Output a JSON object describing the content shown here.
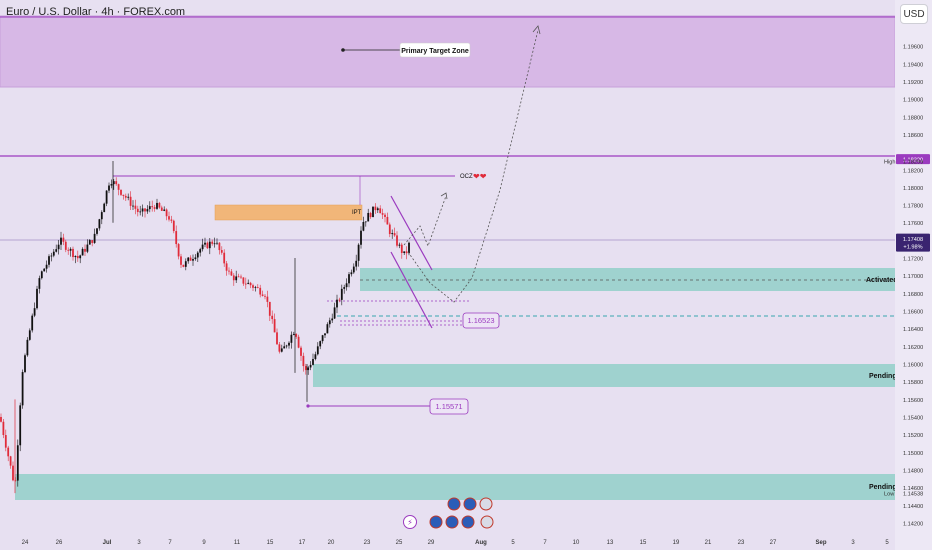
{
  "header": {
    "title": "Euro / U.S. Dollar · 4h · FOREX.com",
    "currency": "USD"
  },
  "colors": {
    "background": "#e7e0f1",
    "primary_zone": "#d7b8e6",
    "teal_zone": "#9fd2cf",
    "purple_line": "#9b3bbf",
    "up_candle": "#111111",
    "down_candle": "#e02b3a",
    "ipt_box": "#f1b679"
  },
  "chart_data": {
    "type": "candlestick",
    "symbol": "Euro / U.S. Dollar",
    "timeframe": "4h",
    "source": "FOREX.com",
    "y_ticks": [
      "1.19600",
      "1.19400",
      "1.19200",
      "1.19000",
      "1.18800",
      "1.18600",
      "1.18200",
      "1.18000",
      "1.17800",
      "1.17600",
      "1.17200",
      "1.17000",
      "1.16800",
      "1.16600",
      "1.16400",
      "1.16200",
      "1.16000",
      "1.15800",
      "1.15600",
      "1.15400",
      "1.15200",
      "1.15000",
      "1.14800",
      "1.14600",
      "1.14400",
      "1.14200"
    ],
    "x_ticks": [
      "24",
      "26",
      "Jul",
      "3",
      "7",
      "9",
      "11",
      "15",
      "17",
      "20",
      "23",
      "25",
      "29",
      "Aug",
      "5",
      "7",
      "10",
      "13",
      "15",
      "19",
      "21",
      "23",
      "27",
      "Sep",
      "3",
      "5"
    ],
    "ylim": [
      1.1412,
      1.1993
    ],
    "price_markers": [
      {
        "label": "1.18320",
        "value": 1.1832,
        "kind": "high-line"
      },
      {
        "label": "1.18299",
        "value": 1.18299,
        "kind": "plain"
      },
      {
        "label": "High",
        "value": 1.18299,
        "kind": "label"
      },
      {
        "label": "1.17408",
        "value": 1.17408,
        "kind": "current"
      },
      {
        "label": "+1.98%",
        "value": 1.17408,
        "kind": "change"
      },
      {
        "label": "1.14538",
        "value": 1.14538,
        "kind": "plain"
      },
      {
        "label": "Low",
        "value": 1.14538,
        "kind": "label"
      }
    ],
    "annotations": {
      "primary_target_zone": {
        "label": "Primary Target Zone",
        "low": 1.1908,
        "high": 1.1983
      },
      "ocz": {
        "label": "OCZ"
      },
      "ipt": {
        "label": "IPT",
        "low": 1.1765,
        "high": 1.1781
      },
      "activated": {
        "label": "Activated",
        "low": 1.1683,
        "high": 1.1707
      },
      "pending_1": {
        "label": "Pending",
        "low": 1.1578,
        "high": 1.1601
      },
      "pending_2": {
        "label": "Pending",
        "low": 1.1453,
        "high": 1.1481
      },
      "level_1": {
        "label": "1.16523",
        "value": 1.16523
      },
      "level_2": {
        "label": "1.15571",
        "value": 1.15571
      }
    }
  }
}
